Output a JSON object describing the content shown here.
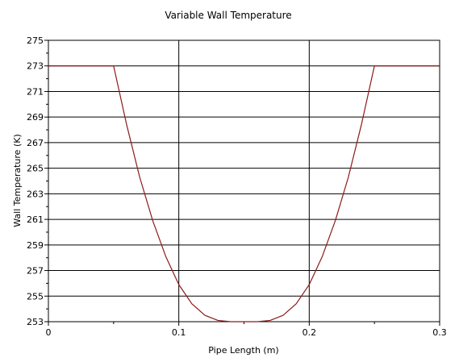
{
  "chart_data": {
    "type": "line",
    "title": "Variable Wall Temperature",
    "xlabel": "Pipe Length (m)",
    "ylabel": "Wall Temperature (K)",
    "xlim": [
      0,
      0.3
    ],
    "ylim": [
      253,
      275
    ],
    "x_ticks": [
      0,
      0.1,
      0.2,
      0.3
    ],
    "x_tick_labels": [
      "0",
      "0.1",
      "0.2",
      "0.3"
    ],
    "y_ticks": [
      253,
      255,
      257,
      259,
      261,
      263,
      265,
      267,
      269,
      271,
      273,
      275
    ],
    "y_tick_labels": [
      "253",
      "255",
      "257",
      "259",
      "261",
      "263",
      "265",
      "267",
      "269",
      "271",
      "273",
      "275"
    ],
    "grid": true,
    "legend": "none",
    "line_color": "#8b1a1a",
    "series": [
      {
        "x": [
          0,
          0.025,
          0.05,
          0.06,
          0.07,
          0.08,
          0.09,
          0.1,
          0.11,
          0.12,
          0.13,
          0.14,
          0.15,
          0.16,
          0.17,
          0.18,
          0.19,
          0.2,
          0.21,
          0.22,
          0.23,
          0.24,
          0.25,
          0.275,
          0.3
        ],
        "y": [
          273,
          273,
          273,
          268.4,
          264.3,
          260.9,
          258.1,
          255.9,
          254.4,
          253.5,
          253.1,
          253.0,
          253.0,
          253.0,
          253.1,
          253.5,
          254.4,
          255.9,
          258.1,
          260.9,
          264.3,
          268.4,
          273,
          273,
          273
        ]
      }
    ]
  }
}
